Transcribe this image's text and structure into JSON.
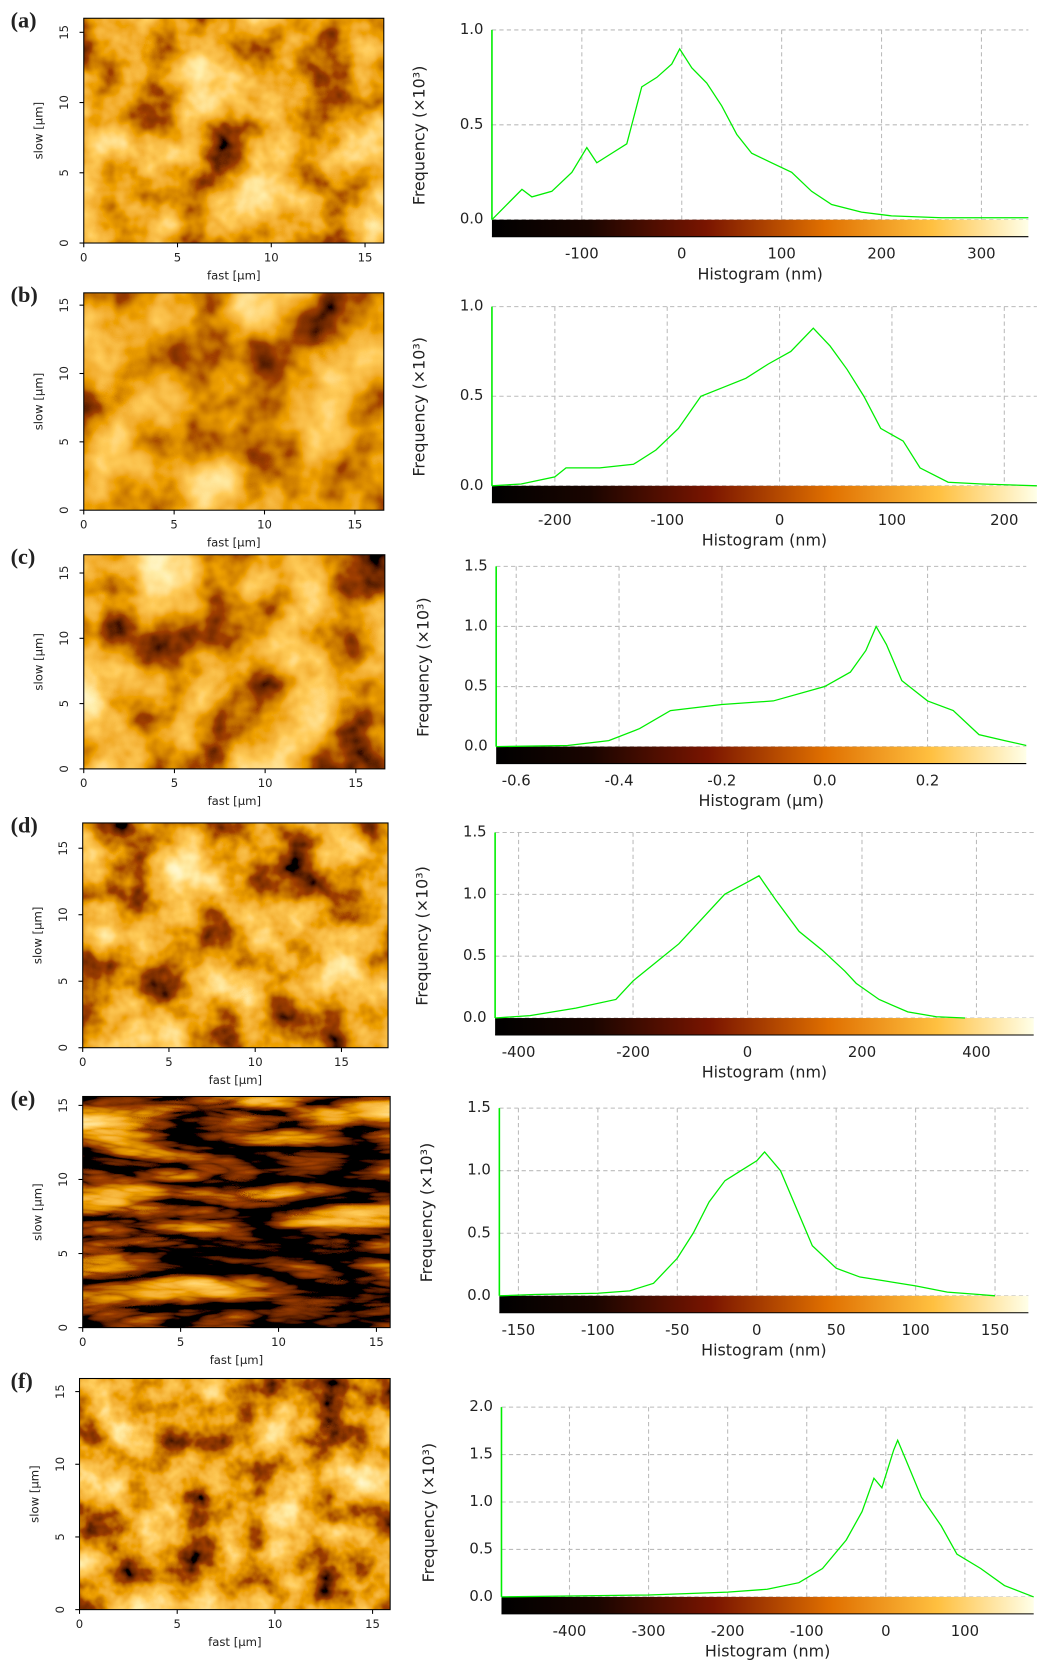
{
  "chart_data": [
    {
      "type": "image",
      "panel_label": "(a)",
      "xlabel": "fast [µm]",
      "ylabel": "slow [µm]",
      "xlim": [
        0,
        16
      ],
      "ylim": [
        0,
        16
      ],
      "xticks": [
        0,
        5,
        10,
        15
      ],
      "yticks": [
        0,
        5,
        10,
        15
      ]
    },
    {
      "type": "line",
      "xlabel": "Histogram (nm)",
      "ylabel": "Frequency (×10³)",
      "color": "#00ee00",
      "grid": true,
      "x": [
        -190,
        -175,
        -160,
        -150,
        -130,
        -110,
        -95,
        -85,
        -70,
        -55,
        -40,
        -25,
        -10,
        -2,
        10,
        25,
        40,
        55,
        70,
        90,
        110,
        130,
        150,
        180,
        210,
        260,
        300,
        347
      ],
      "values": [
        0.0,
        0.08,
        0.16,
        0.12,
        0.15,
        0.25,
        0.38,
        0.3,
        0.35,
        0.4,
        0.7,
        0.75,
        0.82,
        0.9,
        0.8,
        0.72,
        0.6,
        0.45,
        0.35,
        0.3,
        0.25,
        0.15,
        0.08,
        0.04,
        0.02,
        0.01,
        0.01,
        0.01
      ],
      "xlim": [
        -190,
        347
      ],
      "ylim": [
        0,
        1
      ],
      "xticks": [
        -100,
        0,
        100,
        200,
        300
      ],
      "yticks": [
        {
          "value": 0,
          "label": "0.0"
        },
        0.5,
        {
          "value": 1,
          "label": "1.0"
        }
      ]
    },
    {
      "type": "image",
      "panel_label": "(b)",
      "xlabel": "fast [µm]",
      "ylabel": "slow [µm]",
      "xlim": [
        0,
        16.6
      ],
      "ylim": [
        0,
        15.9
      ],
      "xticks": [
        0,
        5,
        10,
        15
      ],
      "yticks": [
        0,
        5,
        10,
        15
      ]
    },
    {
      "type": "line",
      "xlabel": "Histogram (nm)",
      "ylabel": "Frequency (×10³)",
      "color": "#00ee00",
      "grid": true,
      "x": [
        -256,
        -230,
        -200,
        -190,
        -160,
        -130,
        -110,
        -90,
        -70,
        -50,
        -30,
        -10,
        10,
        30,
        45,
        60,
        75,
        90,
        110,
        125,
        150,
        180,
        229
      ],
      "values": [
        0,
        0.01,
        0.05,
        0.1,
        0.1,
        0.12,
        0.2,
        0.32,
        0.5,
        0.55,
        0.6,
        0.68,
        0.75,
        0.88,
        0.78,
        0.65,
        0.5,
        0.32,
        0.25,
        0.1,
        0.02,
        0.01,
        0
      ],
      "xlim": [
        -256,
        229
      ],
      "ylim": [
        0,
        1
      ],
      "xticks": [
        -200,
        -100,
        0,
        100,
        200
      ],
      "yticks": [
        {
          "value": 0,
          "label": "0.0"
        },
        0.5,
        {
          "value": 1,
          "label": "1.0"
        }
      ]
    },
    {
      "type": "image",
      "panel_label": "(c)",
      "xlabel": "fast [µm]",
      "ylabel": "slow [µm]",
      "xlim": [
        0,
        16.6
      ],
      "ylim": [
        0,
        16.4
      ],
      "xticks": [
        0,
        5,
        10,
        15
      ],
      "yticks": [
        0,
        5,
        10,
        15
      ]
    },
    {
      "type": "line",
      "xlabel": "Histogram (µm)",
      "ylabel": "Frequency (×10³)",
      "color": "#00ee00",
      "grid": true,
      "x": [
        -0.639,
        -0.5,
        -0.42,
        -0.36,
        -0.3,
        -0.2,
        -0.1,
        0,
        0.05,
        0.08,
        0.1,
        0.12,
        0.15,
        0.2,
        0.25,
        0.3,
        0.35,
        0.392
      ],
      "values": [
        0,
        0.01,
        0.05,
        0.15,
        0.3,
        0.35,
        0.38,
        0.5,
        0.62,
        0.8,
        1.0,
        0.85,
        0.55,
        0.38,
        0.3,
        0.1,
        0.05,
        0.01
      ],
      "xlim": [
        -0.639,
        0.392
      ],
      "ylim": [
        0,
        1.5
      ],
      "xticks": [
        -0.6,
        -0.4,
        -0.2,
        {
          "value": 0,
          "label": "0.0"
        },
        0.2
      ],
      "yticks": [
        {
          "value": 0,
          "label": "0.0"
        },
        0.5,
        {
          "value": 1,
          "label": "1.0"
        },
        1.5
      ]
    },
    {
      "type": "image",
      "panel_label": "(d)",
      "xlabel": "fast [µm]",
      "ylabel": "slow [µm]",
      "xlim": [
        0,
        17.7
      ],
      "ylim": [
        0,
        16.9
      ],
      "xticks": [
        0,
        5,
        10,
        15
      ],
      "yticks": [
        0,
        5,
        10,
        15
      ]
    },
    {
      "type": "line",
      "xlabel": "Histogram (nm)",
      "ylabel": "Frequency (×10³)",
      "color": "#00ee00",
      "grid": true,
      "x": [
        -441,
        -380,
        -300,
        -230,
        -200,
        -160,
        -120,
        -80,
        -40,
        0,
        20,
        50,
        90,
        130,
        170,
        190,
        230,
        280,
        330,
        380
      ],
      "values": [
        0,
        0.02,
        0.08,
        0.15,
        0.3,
        0.45,
        0.6,
        0.8,
        1.0,
        1.1,
        1.15,
        0.95,
        0.7,
        0.55,
        0.38,
        0.28,
        0.15,
        0.05,
        0.01,
        0
      ],
      "xlim": [
        -441,
        500
      ],
      "ylim": [
        0,
        1.5
      ],
      "xticks": [
        -400,
        -200,
        0,
        200,
        400
      ],
      "yticks": [
        {
          "value": 0,
          "label": "0.0"
        },
        0.5,
        {
          "value": 1,
          "label": "1.0"
        },
        1.5
      ]
    },
    {
      "type": "image",
      "panel_label": "(e)",
      "xlabel": "fast [µm]",
      "ylabel": "slow [µm]",
      "xlim": [
        0,
        15.7
      ],
      "ylim": [
        0,
        15.6
      ],
      "xticks": [
        0,
        5,
        10,
        15
      ],
      "yticks": [
        0,
        5,
        10,
        15
      ]
    },
    {
      "type": "line",
      "xlabel": "Histogram (nm)",
      "ylabel": "Frequency (×10³)",
      "color": "#00ee00",
      "grid": true,
      "x": [
        -162,
        -140,
        -100,
        -80,
        -65,
        -50,
        -40,
        -30,
        -20,
        -10,
        0,
        5,
        15,
        25,
        35,
        50,
        65,
        80,
        100,
        120,
        140,
        150
      ],
      "values": [
        0,
        0.01,
        0.02,
        0.04,
        0.1,
        0.3,
        0.5,
        0.75,
        0.92,
        1.0,
        1.08,
        1.15,
        1.0,
        0.7,
        0.4,
        0.22,
        0.15,
        0.12,
        0.08,
        0.03,
        0.01,
        0
      ],
      "xlim": [
        -162,
        171
      ],
      "ylim": [
        0,
        1.5
      ],
      "xticks": [
        -150,
        -100,
        -50,
        0,
        50,
        100,
        150
      ],
      "yticks": [
        {
          "value": 0,
          "label": "0.0"
        },
        0.5,
        {
          "value": 1,
          "label": "1.0"
        },
        1.5
      ]
    },
    {
      "type": "image",
      "panel_label": "(f)",
      "xlabel": "fast [µm]",
      "ylabel": "slow [µm]",
      "xlim": [
        0,
        15.9
      ],
      "ylim": [
        0,
        15.9
      ],
      "xticks": [
        0,
        5,
        10,
        15
      ],
      "yticks": [
        0,
        5,
        10,
        15
      ]
    },
    {
      "type": "line",
      "xlabel": "Histogram (nm)",
      "ylabel": "Frequency (×10³)",
      "color": "#00ee00",
      "grid": true,
      "x": [
        -486,
        -400,
        -300,
        -200,
        -150,
        -110,
        -80,
        -50,
        -30,
        -15,
        -5,
        10,
        15,
        25,
        45,
        70,
        90,
        120,
        150,
        187
      ],
      "values": [
        0,
        0.01,
        0.02,
        0.05,
        0.08,
        0.15,
        0.3,
        0.6,
        0.9,
        1.25,
        1.15,
        1.55,
        1.65,
        1.45,
        1.05,
        0.75,
        0.45,
        0.3,
        0.12,
        0
      ],
      "xlim": [
        -486,
        187
      ],
      "ylim": [
        0,
        2
      ],
      "xticks": [
        -400,
        -300,
        -200,
        -100,
        0,
        100
      ],
      "yticks": [
        {
          "value": 0,
          "label": "0.0"
        },
        0.5,
        {
          "value": 1,
          "label": "1.0"
        },
        1.5,
        {
          "value": 2,
          "label": "2.0"
        }
      ]
    }
  ]
}
